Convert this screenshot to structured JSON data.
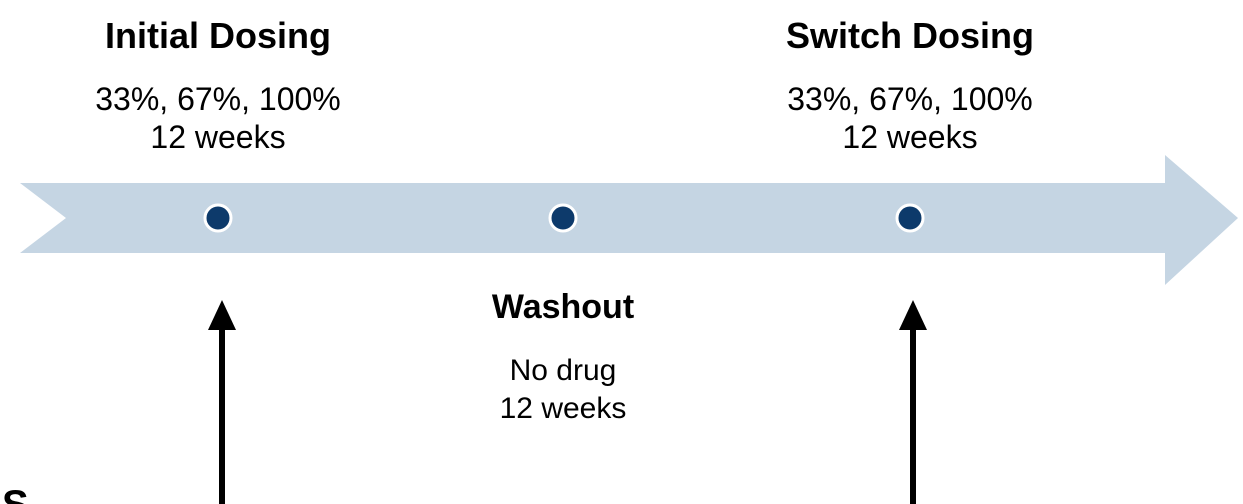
{
  "phases": [
    {
      "title": "Initial Dosing",
      "lines": [
        "33%, 67%, 100%",
        "12 weeks"
      ]
    },
    {
      "title": "Washout",
      "lines": [
        "No drug",
        "12 weeks"
      ]
    },
    {
      "title": "Switch Dosing",
      "lines": [
        "33%, 67%, 100%",
        "12 weeks"
      ]
    }
  ],
  "corner_fragment": "S"
}
